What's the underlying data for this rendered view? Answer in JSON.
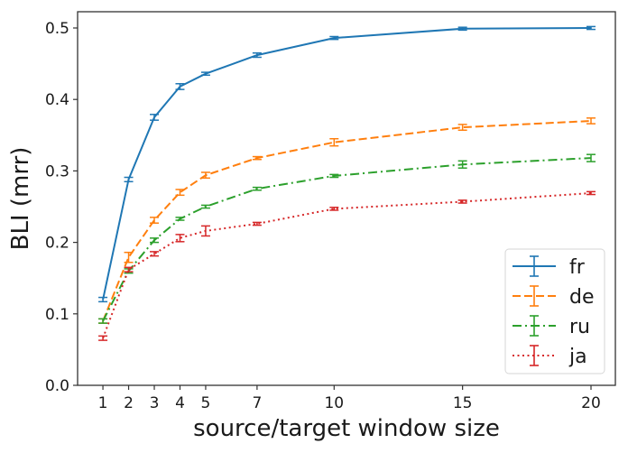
{
  "chart_data": {
    "type": "line",
    "title": "",
    "xlabel": "source/target window size",
    "ylabel": "BLI (mrr)",
    "x": [
      1,
      2,
      3,
      4,
      5,
      7,
      10,
      15,
      20
    ],
    "xticks": [
      "1",
      "2",
      "3",
      "4",
      "5",
      "7",
      "10",
      "15",
      "20"
    ],
    "yticks": [
      "0.0",
      "0.1",
      "0.2",
      "0.3",
      "0.4",
      "0.5"
    ],
    "xlim": [
      0,
      20.75
    ],
    "ylim": [
      0.0,
      0.52
    ],
    "grid": false,
    "legend_position": "lower right",
    "error_bars": true,
    "series": [
      {
        "name": "fr",
        "color": "#1f77b4",
        "linestyle": "solid",
        "values": [
          0.12,
          0.288,
          0.375,
          0.418,
          0.436,
          0.462,
          0.486,
          0.499,
          0.5
        ],
        "errors": [
          0.003,
          0.003,
          0.004,
          0.004,
          0.002,
          0.003,
          0.002,
          0.002,
          0.002
        ]
      },
      {
        "name": "de",
        "color": "#ff7f0e",
        "linestyle": "dashed",
        "values": [
          0.09,
          0.179,
          0.231,
          0.27,
          0.294,
          0.318,
          0.34,
          0.361,
          0.37
        ],
        "errors": [
          0.003,
          0.007,
          0.004,
          0.004,
          0.004,
          0.002,
          0.005,
          0.004,
          0.004
        ]
      },
      {
        "name": "ru",
        "color": "#2ca02c",
        "linestyle": "dashdot",
        "values": [
          0.09,
          0.16,
          0.203,
          0.233,
          0.25,
          0.275,
          0.293,
          0.309,
          0.318
        ],
        "errors": [
          0.003,
          0.003,
          0.003,
          0.002,
          0.002,
          0.002,
          0.002,
          0.005,
          0.005
        ]
      },
      {
        "name": "ja",
        "color": "#d62728",
        "linestyle": "dotted",
        "values": [
          0.066,
          0.162,
          0.184,
          0.206,
          0.216,
          0.226,
          0.247,
          0.257,
          0.269
        ],
        "errors": [
          0.003,
          0.003,
          0.003,
          0.005,
          0.007,
          0.002,
          0.002,
          0.002,
          0.002
        ]
      }
    ]
  }
}
